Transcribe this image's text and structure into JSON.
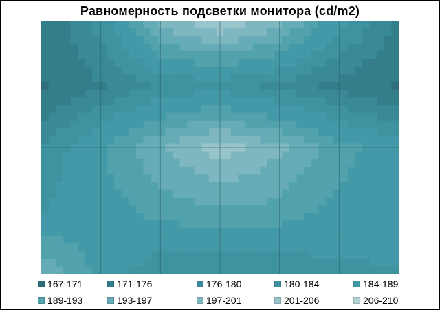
{
  "chart_data": {
    "type": "heatmap",
    "title": "Равномерность подсветки монитора (cd/m2)",
    "xlabel": "",
    "ylabel": "",
    "grid_rows": 5,
    "grid_cols": 7,
    "grid": true,
    "legend_position": "bottom",
    "values": [
      [
        172,
        182,
        198,
        204,
        198,
        186,
        176
      ],
      [
        171,
        176,
        181,
        182,
        179,
        175,
        171
      ],
      [
        181,
        189,
        197,
        203,
        198,
        191,
        186
      ],
      [
        184,
        187,
        191,
        193,
        192,
        188,
        186
      ],
      [
        196,
        187,
        181,
        181,
        181,
        183,
        184
      ]
    ],
    "series": [
      {
        "name": "167-171",
        "range": [
          167,
          171
        ],
        "color": "#2E6E7A"
      },
      {
        "name": "171-176",
        "range": [
          171,
          176
        ],
        "color": "#347D8A"
      },
      {
        "name": "176-180",
        "range": [
          176,
          180
        ],
        "color": "#3A8996"
      },
      {
        "name": "180-184",
        "range": [
          180,
          184
        ],
        "color": "#3F929F"
      },
      {
        "name": "184-189",
        "range": [
          184,
          189
        ],
        "color": "#4399A7"
      },
      {
        "name": "189-193",
        "range": [
          189,
          193
        ],
        "color": "#52A2AE"
      },
      {
        "name": "193-197",
        "range": [
          193,
          197
        ],
        "color": "#66ACB7"
      },
      {
        "name": "197-201",
        "range": [
          197,
          201
        ],
        "color": "#7EB7C0"
      },
      {
        "name": "201-206",
        "range": [
          201,
          206
        ],
        "color": "#98C4CB"
      },
      {
        "name": "206-210",
        "range": [
          206,
          210
        ],
        "color": "#B4D3D8"
      }
    ]
  }
}
